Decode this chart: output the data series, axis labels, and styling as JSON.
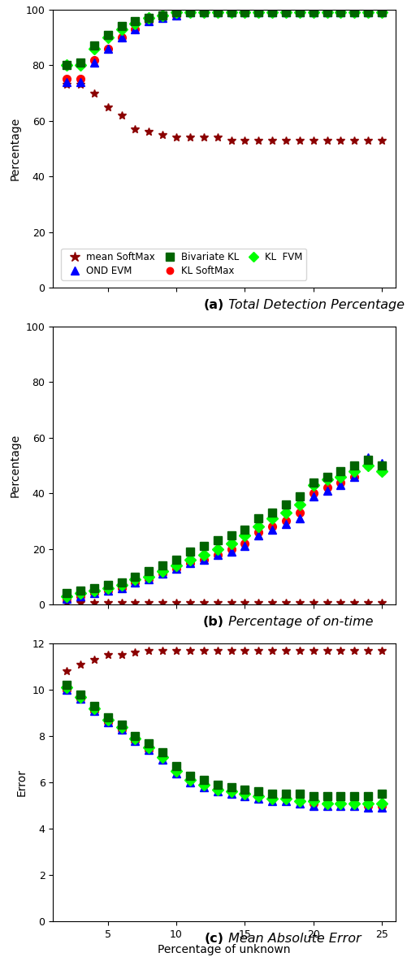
{
  "x": [
    2,
    3,
    4,
    5,
    6,
    7,
    8,
    9,
    10,
    11,
    12,
    13,
    14,
    15,
    16,
    17,
    18,
    19,
    20,
    21,
    22,
    23,
    24,
    25
  ],
  "plot_a": {
    "ylabel": "Percentage",
    "ylim": [
      0,
      100
    ],
    "yticks": [
      0,
      20,
      40,
      60,
      80,
      100
    ],
    "caption_bold": "(a)",
    "caption_italic": " Total Detection Percentage",
    "mean_softmax": [
      73,
      73,
      70,
      65,
      62,
      57,
      56,
      55,
      54,
      54,
      54,
      54,
      53,
      53,
      53,
      53,
      53,
      53,
      53,
      53,
      53,
      53,
      53,
      53
    ],
    "kl_softmax": [
      75,
      75,
      82,
      86,
      90,
      93,
      96,
      97,
      98,
      99,
      99,
      99,
      99,
      99,
      99,
      99,
      99,
      99,
      99,
      99,
      99,
      99,
      99,
      99
    ],
    "ond_evm": [
      74,
      74,
      81,
      86,
      90,
      93,
      96,
      97,
      98,
      99,
      99,
      99,
      99,
      99,
      99,
      99,
      99,
      99,
      99,
      99,
      99,
      99,
      99,
      99
    ],
    "kl_fvm": [
      80,
      80,
      86,
      90,
      93,
      95,
      97,
      98,
      99,
      99,
      99,
      99,
      99,
      99,
      99,
      99,
      99,
      99,
      99,
      99,
      99,
      99,
      99,
      99
    ],
    "bivariate_kl": [
      80,
      81,
      87,
      91,
      94,
      96,
      97,
      98,
      99,
      99,
      99,
      99,
      99,
      99,
      99,
      99,
      99,
      99,
      99,
      99,
      99,
      99,
      99,
      99
    ]
  },
  "plot_b": {
    "ylabel": "Percentage",
    "ylim": [
      0,
      100
    ],
    "yticks": [
      0,
      20,
      40,
      60,
      80,
      100
    ],
    "caption_bold": "(b)",
    "caption_italic": " Percentage of on-time",
    "mean_softmax": [
      0.5,
      0.5,
      0.5,
      0.5,
      0.5,
      0.5,
      0.5,
      0.5,
      0.5,
      0.5,
      0.5,
      0.5,
      0.5,
      0.5,
      0.5,
      0.5,
      0.5,
      0.5,
      0.5,
      0.5,
      0.5,
      0.5,
      0.5,
      0.5
    ],
    "kl_softmax": [
      2,
      3,
      4,
      5,
      6,
      8,
      9,
      11,
      13,
      15,
      16,
      18,
      20,
      22,
      26,
      28,
      30,
      33,
      40,
      42,
      44,
      46,
      50,
      48
    ],
    "ond_evm": [
      2,
      3,
      4,
      5,
      6,
      8,
      9,
      11,
      13,
      15,
      16,
      18,
      19,
      21,
      25,
      27,
      29,
      31,
      39,
      41,
      43,
      46,
      53,
      51
    ],
    "kl_fvm": [
      3,
      4,
      5,
      6,
      7,
      9,
      10,
      12,
      14,
      16,
      18,
      20,
      22,
      25,
      28,
      31,
      33,
      36,
      43,
      45,
      46,
      48,
      50,
      48
    ],
    "bivariate_kl": [
      4,
      5,
      6,
      7,
      8,
      10,
      12,
      14,
      16,
      19,
      21,
      23,
      25,
      27,
      31,
      33,
      36,
      39,
      44,
      46,
      48,
      50,
      52,
      50
    ]
  },
  "plot_c": {
    "ylabel": "Error",
    "xlabel": "Percentage of unknown",
    "ylim": [
      0,
      12
    ],
    "yticks": [
      0,
      2,
      4,
      6,
      8,
      10,
      12
    ],
    "caption_bold": "(c)",
    "caption_italic": " Mean Absolute Error",
    "mean_softmax": [
      10.8,
      11.1,
      11.3,
      11.5,
      11.5,
      11.6,
      11.7,
      11.7,
      11.7,
      11.7,
      11.7,
      11.7,
      11.7,
      11.7,
      11.7,
      11.7,
      11.7,
      11.7,
      11.7,
      11.7,
      11.7,
      11.7,
      11.7,
      11.7
    ],
    "kl_softmax": [
      10.0,
      9.6,
      9.1,
      8.6,
      8.3,
      7.8,
      7.4,
      7.1,
      6.5,
      6.1,
      5.9,
      5.7,
      5.6,
      5.5,
      5.4,
      5.3,
      5.3,
      5.2,
      5.1,
      5.1,
      5.1,
      5.1,
      5.0,
      5.0
    ],
    "ond_evm": [
      10.0,
      9.6,
      9.1,
      8.6,
      8.3,
      7.8,
      7.4,
      7.0,
      6.4,
      6.0,
      5.8,
      5.6,
      5.5,
      5.4,
      5.3,
      5.2,
      5.2,
      5.1,
      5.0,
      5.0,
      5.0,
      5.0,
      4.9,
      4.9
    ],
    "kl_fvm": [
      10.1,
      9.7,
      9.2,
      8.7,
      8.4,
      7.9,
      7.5,
      7.1,
      6.5,
      6.1,
      5.9,
      5.7,
      5.6,
      5.5,
      5.4,
      5.3,
      5.3,
      5.2,
      5.2,
      5.1,
      5.1,
      5.1,
      5.1,
      5.1
    ],
    "bivariate_kl": [
      10.2,
      9.8,
      9.3,
      8.8,
      8.5,
      8.0,
      7.7,
      7.3,
      6.7,
      6.3,
      6.1,
      5.9,
      5.8,
      5.7,
      5.6,
      5.5,
      5.5,
      5.5,
      5.4,
      5.4,
      5.4,
      5.4,
      5.4,
      5.5
    ]
  },
  "colors": {
    "mean_softmax": "#8B0000",
    "kl_softmax": "#FF0000",
    "ond_evm": "#0000FF",
    "kl_fvm": "#00FF00",
    "bivariate_kl": "#006400"
  },
  "markers": {
    "mean_softmax": "*",
    "kl_softmax": "o",
    "ond_evm": "^",
    "kl_fvm": "D",
    "bivariate_kl": "s"
  },
  "legend_labels": {
    "mean_softmax": "mean SoftMax",
    "kl_softmax": "KL SoftMax",
    "ond_evm": "OND EVM",
    "kl_fvm": "KL  FVM",
    "bivariate_kl": "Bivariate KL"
  },
  "markersize": 7,
  "xlim": [
    1,
    26
  ],
  "xticks": [
    5,
    10,
    15,
    20,
    25
  ]
}
